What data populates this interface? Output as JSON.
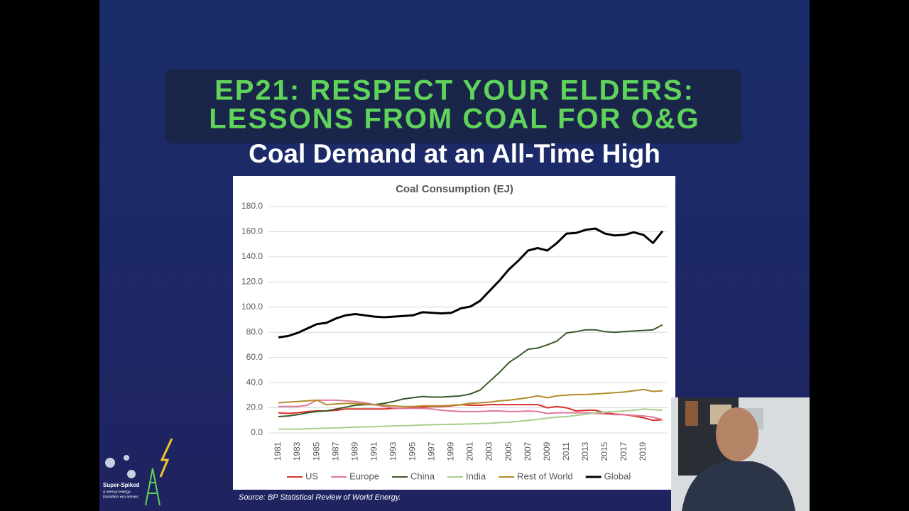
{
  "slide": {
    "episode_title_1": "EP21: RESPECT YOUR ELDERS:",
    "episode_title_2": "LESSONS FROM COAL FOR O&G",
    "heading": "Coal Demand at an All-Time High",
    "source": "Source: BP Statistical Review of World Energy.",
    "logo_name": "Super-Spiked",
    "logo_tagline_1": "a messy energy",
    "logo_tagline_2": "transition era arrives"
  },
  "chart_data": {
    "type": "line",
    "title": "Coal Consumption (EJ)",
    "categories": [
      "1981",
      null,
      "1983",
      null,
      "1985",
      null,
      "1987",
      null,
      "1989",
      null,
      "1991",
      null,
      "1993",
      null,
      "1995",
      null,
      "1997",
      null,
      "1999",
      null,
      "2001",
      null,
      "2003",
      null,
      "2005",
      null,
      "2007",
      null,
      "2009",
      null,
      "2011",
      null,
      "2013",
      null,
      "2015",
      null,
      "2017",
      null,
      "2019",
      null,
      null
    ],
    "series": [
      {
        "name": "US",
        "color": "#d7312b",
        "values": [
          16,
          15.5,
          16,
          17,
          17.5,
          17.5,
          18,
          19,
          19,
          19,
          19,
          19,
          19.5,
          19.5,
          20,
          20.5,
          21,
          21,
          21.5,
          22.5,
          22,
          22,
          22.5,
          22.5,
          22.5,
          22.5,
          22.5,
          22.5,
          20,
          21,
          20,
          17.5,
          18,
          18,
          16,
          15,
          14.5,
          13.5,
          12,
          10,
          10.5
        ]
      },
      {
        "name": "Europe",
        "color": "#e0789a",
        "values": [
          21,
          21,
          21,
          22,
          26,
          26,
          26,
          25.5,
          25,
          24,
          22.5,
          21,
          20,
          19.5,
          19.5,
          19.5,
          19,
          18,
          17.5,
          17,
          17,
          17,
          17.5,
          17.5,
          17,
          17,
          17.5,
          17,
          15.5,
          16,
          16,
          16,
          16,
          15.5,
          15,
          14.5,
          14.5,
          14,
          13.5,
          12.5,
          10.5
        ]
      },
      {
        "name": "China",
        "color": "#3a5a2a",
        "values": [
          13,
          13.5,
          14.5,
          16,
          17,
          17.5,
          19,
          20.5,
          22,
          22.5,
          22.5,
          23.5,
          25,
          27,
          28,
          29,
          28.5,
          28.5,
          29,
          29.5,
          31,
          34,
          41,
          48,
          56,
          61,
          66.5,
          67.5,
          70,
          73,
          79.5,
          80.5,
          82,
          82,
          80.5,
          80,
          80.5,
          81,
          81.5,
          82,
          86
        ]
      },
      {
        "name": "India",
        "color": "#a7d08c",
        "values": [
          3,
          3,
          3,
          3.2,
          3.5,
          3.7,
          4,
          4.3,
          4.6,
          4.8,
          5,
          5.3,
          5.6,
          5.8,
          6,
          6.3,
          6.5,
          6.7,
          6.8,
          7,
          7.2,
          7.4,
          7.7,
          8.2,
          8.6,
          9.2,
          10,
          10.8,
          11.8,
          12.5,
          13,
          14,
          14.8,
          16,
          16.5,
          17,
          17.5,
          18,
          19,
          18.5,
          18
        ]
      },
      {
        "name": "Rest of World",
        "color": "#b58a2b",
        "values": [
          24,
          24.5,
          25,
          25.5,
          26,
          22.5,
          23,
          23.5,
          23.5,
          23,
          22.5,
          22,
          21.5,
          21,
          21,
          21.5,
          21.5,
          21.5,
          22,
          22.5,
          23.5,
          24,
          24.5,
          25.5,
          26,
          27,
          28,
          29.5,
          28,
          29.5,
          30,
          30.5,
          30.5,
          31,
          31.5,
          32,
          32.5,
          33.5,
          34.5,
          33,
          33.5
        ]
      },
      {
        "name": "Global",
        "color": "#000000",
        "values": [
          76,
          77,
          79.5,
          83,
          86.5,
          87.5,
          91,
          93.5,
          94.5,
          93.5,
          92.5,
          92,
          92.5,
          93,
          93.5,
          96,
          95.5,
          95,
          95.5,
          99,
          100.5,
          105,
          113,
          121,
          130,
          137,
          145,
          147,
          145,
          151,
          158.5,
          159,
          161.5,
          162.5,
          158.5,
          157,
          157.5,
          159.5,
          157.5,
          151,
          160.5
        ]
      }
    ],
    "ylim": [
      0,
      180
    ],
    "yticks": [
      {
        "value": 0,
        "label": "0.0"
      },
      {
        "value": 20,
        "label": "20.0"
      },
      {
        "value": 40,
        "label": "40.0"
      },
      {
        "value": 60,
        "label": "60.0"
      },
      {
        "value": 80,
        "label": "80.0"
      },
      {
        "value": 100,
        "label": "100.0"
      },
      {
        "value": 120,
        "label": "120.0"
      },
      {
        "value": 140,
        "label": "140.0"
      },
      {
        "value": 160,
        "label": "160.0"
      },
      {
        "value": 180,
        "label": "180.0"
      }
    ],
    "grid": true,
    "legend": "bottom"
  }
}
